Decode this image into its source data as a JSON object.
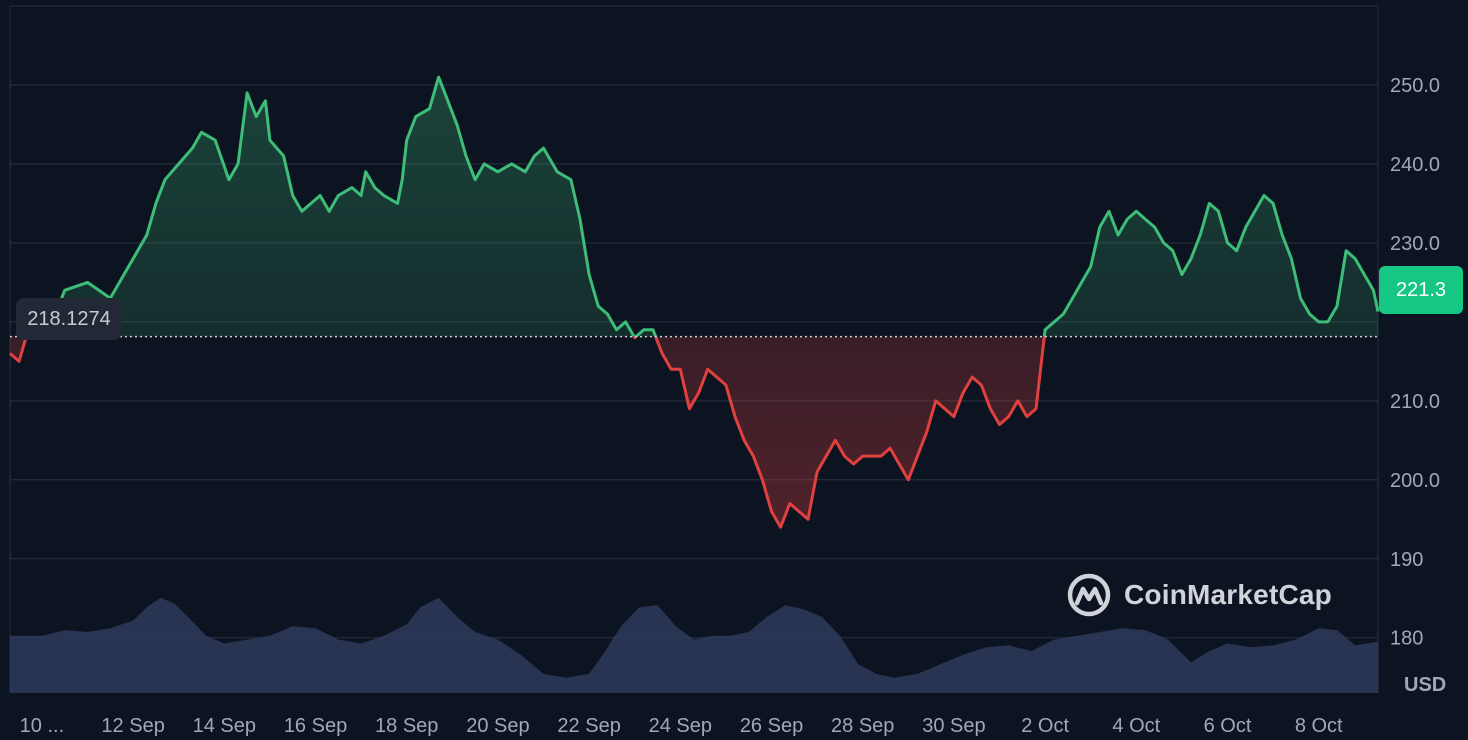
{
  "app": {
    "watermark_text": "CoinMarketCap",
    "watermark_icon": "coinmarketcap-logo-icon"
  },
  "price_badges": {
    "current_price": "221.3",
    "reference_price": "218.1274"
  },
  "colors": {
    "up": "#3dbd77",
    "down": "#e0413f",
    "current_badge": "#16c784",
    "volume": "#2f3a5c",
    "background": "#0d1421",
    "grid": "#2a3140"
  },
  "chart_data": {
    "type": "area",
    "title": "",
    "xlabel": "",
    "ylabel": "",
    "unit": "USD",
    "y_ticks": [
      "180",
      "190",
      "200.0",
      "210.0",
      "230.0",
      "240.0",
      "250.0"
    ],
    "y_tick_values": [
      180,
      190,
      200,
      210,
      230,
      240,
      250
    ],
    "ylim": [
      173,
      260
    ],
    "x_ticks": [
      "10 ...",
      "12 Sep",
      "14 Sep",
      "16 Sep",
      "18 Sep",
      "20 Sep",
      "22 Sep",
      "24 Sep",
      "26 Sep",
      "28 Sep",
      "30 Sep",
      "2 Oct",
      "4 Oct",
      "6 Oct",
      "8 Oct"
    ],
    "x_tick_days": [
      0,
      2,
      4,
      6,
      8,
      10,
      12,
      14,
      16,
      18,
      20,
      22,
      24,
      26,
      28
    ],
    "x_day_range": [
      -0.7,
      29.3
    ],
    "baseline": 218.1274,
    "current": 221.3,
    "grid": true,
    "series": [
      {
        "points": [
          [
            -0.7,
            216
          ],
          [
            -0.5,
            215
          ],
          [
            -0.3,
            219
          ],
          [
            0,
            220
          ],
          [
            0.3,
            221
          ],
          [
            0.5,
            224
          ],
          [
            1,
            225
          ],
          [
            1.5,
            223
          ],
          [
            2,
            228
          ],
          [
            2.3,
            231
          ],
          [
            2.5,
            235
          ],
          [
            2.7,
            238
          ],
          [
            3,
            240
          ],
          [
            3.3,
            242
          ],
          [
            3.5,
            244
          ],
          [
            3.8,
            243
          ],
          [
            4.1,
            238
          ],
          [
            4.3,
            240
          ],
          [
            4.5,
            249
          ],
          [
            4.7,
            246
          ],
          [
            4.9,
            248
          ],
          [
            5,
            243
          ],
          [
            5.3,
            241
          ],
          [
            5.5,
            236
          ],
          [
            5.7,
            234
          ],
          [
            5.9,
            235
          ],
          [
            6.1,
            236
          ],
          [
            6.3,
            234
          ],
          [
            6.5,
            236
          ],
          [
            6.8,
            237
          ],
          [
            7,
            236
          ],
          [
            7.1,
            239
          ],
          [
            7.3,
            237
          ],
          [
            7.5,
            236
          ],
          [
            7.8,
            235
          ],
          [
            7.9,
            238
          ],
          [
            8,
            243
          ],
          [
            8.2,
            246
          ],
          [
            8.5,
            247
          ],
          [
            8.7,
            251
          ],
          [
            8.9,
            248
          ],
          [
            9.1,
            245
          ],
          [
            9.3,
            241
          ],
          [
            9.5,
            238
          ],
          [
            9.7,
            240
          ],
          [
            10,
            239
          ],
          [
            10.3,
            240
          ],
          [
            10.6,
            239
          ],
          [
            10.8,
            241
          ],
          [
            11,
            242
          ],
          [
            11.3,
            239
          ],
          [
            11.6,
            238
          ],
          [
            11.8,
            233
          ],
          [
            12,
            226
          ],
          [
            12.2,
            222
          ],
          [
            12.4,
            221
          ],
          [
            12.6,
            219
          ],
          [
            12.8,
            220
          ],
          [
            13,
            218
          ],
          [
            13.2,
            219
          ],
          [
            13.4,
            219
          ],
          [
            13.6,
            216
          ],
          [
            13.8,
            214
          ],
          [
            14,
            214
          ],
          [
            14.2,
            209
          ],
          [
            14.4,
            211
          ],
          [
            14.6,
            214
          ],
          [
            14.8,
            213
          ],
          [
            15,
            212
          ],
          [
            15.2,
            208
          ],
          [
            15.4,
            205
          ],
          [
            15.6,
            203
          ],
          [
            15.8,
            200
          ],
          [
            16,
            196
          ],
          [
            16.2,
            194
          ],
          [
            16.4,
            197
          ],
          [
            16.6,
            196
          ],
          [
            16.8,
            195
          ],
          [
            17,
            201
          ],
          [
            17.2,
            203
          ],
          [
            17.4,
            205
          ],
          [
            17.6,
            203
          ],
          [
            17.8,
            202
          ],
          [
            18,
            203
          ],
          [
            18.2,
            203
          ],
          [
            18.4,
            203
          ],
          [
            18.6,
            204
          ],
          [
            18.8,
            202
          ],
          [
            19,
            200
          ],
          [
            19.2,
            203
          ],
          [
            19.4,
            206
          ],
          [
            19.6,
            210
          ],
          [
            19.8,
            209
          ],
          [
            20,
            208
          ],
          [
            20.2,
            211
          ],
          [
            20.4,
            213
          ],
          [
            20.6,
            212
          ],
          [
            20.8,
            209
          ],
          [
            21,
            207
          ],
          [
            21.2,
            208
          ],
          [
            21.4,
            210
          ],
          [
            21.6,
            208
          ],
          [
            21.8,
            209
          ],
          [
            22,
            219
          ],
          [
            22.2,
            220
          ],
          [
            22.4,
            221
          ],
          [
            22.6,
            223
          ],
          [
            22.8,
            225
          ],
          [
            23,
            227
          ],
          [
            23.2,
            232
          ],
          [
            23.4,
            234
          ],
          [
            23.6,
            231
          ],
          [
            23.8,
            233
          ],
          [
            24,
            234
          ],
          [
            24.2,
            233
          ],
          [
            24.4,
            232
          ],
          [
            24.6,
            230
          ],
          [
            24.8,
            229
          ],
          [
            25,
            226
          ],
          [
            25.2,
            228
          ],
          [
            25.4,
            231
          ],
          [
            25.6,
            235
          ],
          [
            25.8,
            234
          ],
          [
            26,
            230
          ],
          [
            26.2,
            229
          ],
          [
            26.4,
            232
          ],
          [
            26.6,
            234
          ],
          [
            26.8,
            236
          ],
          [
            27,
            235
          ],
          [
            27.2,
            231
          ],
          [
            27.4,
            228
          ],
          [
            27.6,
            223
          ],
          [
            27.8,
            221
          ],
          [
            28,
            220
          ],
          [
            28.2,
            220
          ],
          [
            28.4,
            222
          ],
          [
            28.6,
            229
          ],
          [
            28.8,
            228
          ],
          [
            29,
            226
          ],
          [
            29.2,
            224
          ],
          [
            29.3,
            221.3
          ]
        ]
      }
    ],
    "volume": [
      [
        -0.7,
        0.3
      ],
      [
        0,
        0.3
      ],
      [
        0.5,
        0.33
      ],
      [
        1,
        0.32
      ],
      [
        1.5,
        0.34
      ],
      [
        2,
        0.38
      ],
      [
        2.3,
        0.45
      ],
      [
        2.6,
        0.5
      ],
      [
        2.9,
        0.47
      ],
      [
        3.2,
        0.4
      ],
      [
        3.6,
        0.3
      ],
      [
        4,
        0.26
      ],
      [
        4.5,
        0.28
      ],
      [
        5,
        0.3
      ],
      [
        5.5,
        0.35
      ],
      [
        6,
        0.34
      ],
      [
        6.5,
        0.28
      ],
      [
        7,
        0.26
      ],
      [
        7.5,
        0.3
      ],
      [
        8,
        0.36
      ],
      [
        8.3,
        0.45
      ],
      [
        8.7,
        0.5
      ],
      [
        9.1,
        0.4
      ],
      [
        9.5,
        0.32
      ],
      [
        10,
        0.28
      ],
      [
        10.5,
        0.2
      ],
      [
        11,
        0.1
      ],
      [
        11.5,
        0.08
      ],
      [
        12,
        0.1
      ],
      [
        12.3,
        0.2
      ],
      [
        12.7,
        0.35
      ],
      [
        13.1,
        0.45
      ],
      [
        13.5,
        0.46
      ],
      [
        13.9,
        0.35
      ],
      [
        14.3,
        0.28
      ],
      [
        14.7,
        0.3
      ],
      [
        15.1,
        0.3
      ],
      [
        15.5,
        0.32
      ],
      [
        15.9,
        0.4
      ],
      [
        16.3,
        0.46
      ],
      [
        16.7,
        0.44
      ],
      [
        17.1,
        0.4
      ],
      [
        17.5,
        0.3
      ],
      [
        17.9,
        0.15
      ],
      [
        18.3,
        0.1
      ],
      [
        18.7,
        0.08
      ],
      [
        19.2,
        0.1
      ],
      [
        19.7,
        0.15
      ],
      [
        20.2,
        0.2
      ],
      [
        20.7,
        0.24
      ],
      [
        21.2,
        0.25
      ],
      [
        21.7,
        0.22
      ],
      [
        22.2,
        0.28
      ],
      [
        22.7,
        0.3
      ],
      [
        23.2,
        0.32
      ],
      [
        23.7,
        0.34
      ],
      [
        24.2,
        0.33
      ],
      [
        24.7,
        0.28
      ],
      [
        25.2,
        0.16
      ],
      [
        25.6,
        0.22
      ],
      [
        26,
        0.26
      ],
      [
        26.5,
        0.24
      ],
      [
        27,
        0.25
      ],
      [
        27.5,
        0.28
      ],
      [
        28,
        0.34
      ],
      [
        28.4,
        0.33
      ],
      [
        28.8,
        0.25
      ],
      [
        29.3,
        0.27
      ]
    ]
  }
}
